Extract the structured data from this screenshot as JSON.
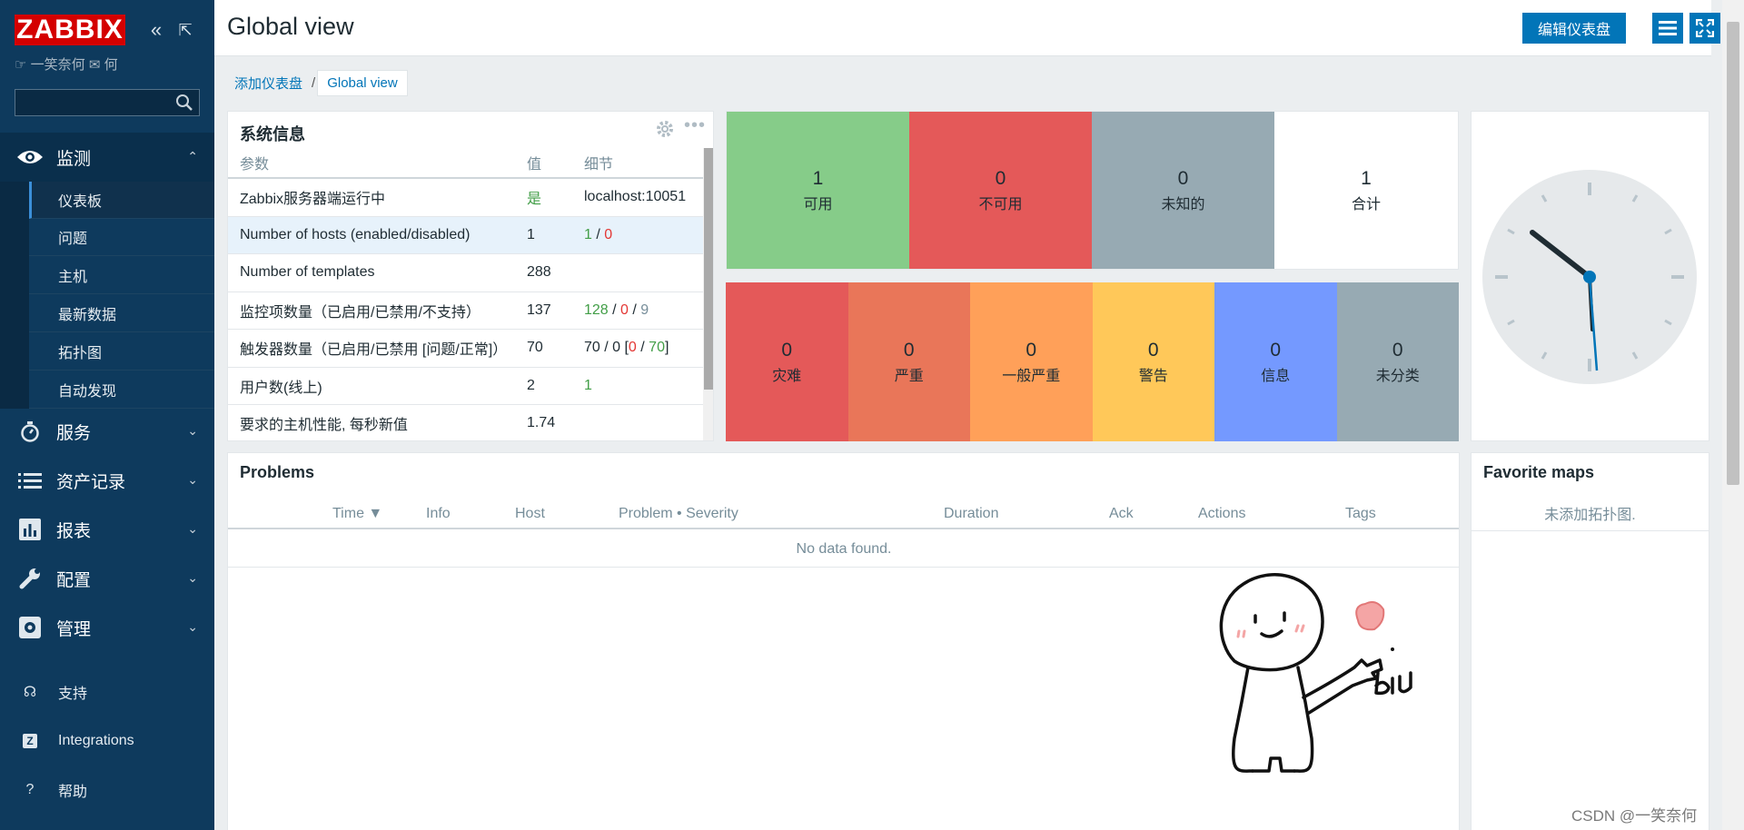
{
  "sidebar": {
    "logo": "ZABBIX",
    "user": "一笑奈何",
    "search": {
      "value": "",
      "placeholder": ""
    },
    "sections": [
      {
        "label": "监测",
        "icon": "eye-icon",
        "expanded": true
      },
      {
        "label": "服务",
        "icon": "stopwatch-icon"
      },
      {
        "label": "资产记录",
        "icon": "list-icon"
      },
      {
        "label": "报表",
        "icon": "bar-chart-icon"
      },
      {
        "label": "配置",
        "icon": "wrench-icon"
      },
      {
        "label": "管理",
        "icon": "gear-icon"
      }
    ],
    "submenu": [
      "仪表板",
      "问题",
      "主机",
      "最新数据",
      "拓扑图",
      "自动发现"
    ],
    "bottom": [
      {
        "label": "支持",
        "icon": "headset-icon"
      },
      {
        "label": "Integrations",
        "icon": "zabbix-z-icon"
      },
      {
        "label": "帮助",
        "icon": "question-icon"
      }
    ]
  },
  "header": {
    "title": "Global view",
    "edit_button": "编辑仪表盘"
  },
  "breadcrumb": {
    "parent": "添加仪表盘",
    "separator": "/",
    "current": "Global view"
  },
  "system_info": {
    "title": "系统信息",
    "columns": [
      "参数",
      "值",
      "细节"
    ],
    "rows": [
      {
        "param": "Zabbix服务器端运行中",
        "value": "是",
        "detail_plain": "localhost:10051"
      },
      {
        "param": "Number of hosts (enabled/disabled)",
        "value": "1",
        "d1": "1",
        "s1": " / ",
        "d2": "0"
      },
      {
        "param": "Number of templates",
        "value": "288"
      },
      {
        "param": "监控项数量（已启用/已禁用/不支持）",
        "value": "137",
        "d1": "128",
        "s1": " / ",
        "d2": "0",
        "s2": " / ",
        "d3": "9"
      },
      {
        "param": "触发器数量（已启用/已禁用 [问题/正常]）",
        "value": "70",
        "pre": "70 / 0 [",
        "d2": "0",
        "s2": " / ",
        "d1": "70",
        "post": "]"
      },
      {
        "param": "用户数(线上)",
        "value": "2",
        "d1": "1"
      },
      {
        "param": "要求的主机性能, 每秒新值",
        "value": "1.74"
      }
    ]
  },
  "host_availability": [
    {
      "count": "1",
      "label": "可用",
      "color": "#86cc89"
    },
    {
      "count": "0",
      "label": "不可用",
      "color": "#e45959"
    },
    {
      "count": "0",
      "label": "未知的",
      "color": "#97aab3"
    },
    {
      "count": "1",
      "label": "合计",
      "color": "#ffffff"
    }
  ],
  "problems_by_severity": [
    {
      "count": "0",
      "label": "灾难",
      "color": "#e45959"
    },
    {
      "count": "0",
      "label": "严重",
      "color": "#e97659"
    },
    {
      "count": "0",
      "label": "一般严重",
      "color": "#ffa059"
    },
    {
      "count": "0",
      "label": "警告",
      "color": "#ffc859"
    },
    {
      "count": "0",
      "label": "信息",
      "color": "#7499ff"
    },
    {
      "count": "0",
      "label": "未分类",
      "color": "#97aab3"
    }
  ],
  "problems": {
    "title": "Problems",
    "columns": [
      "Time ▼",
      "Info",
      "Host",
      "Problem • Severity",
      "Duration",
      "Ack",
      "Actions",
      "Tags"
    ],
    "empty": "No data found."
  },
  "favorite_maps": {
    "title": "Favorite maps",
    "empty": "未添加拓扑图."
  },
  "sticker_text": "biu",
  "watermark": "CSDN @一笑奈何"
}
